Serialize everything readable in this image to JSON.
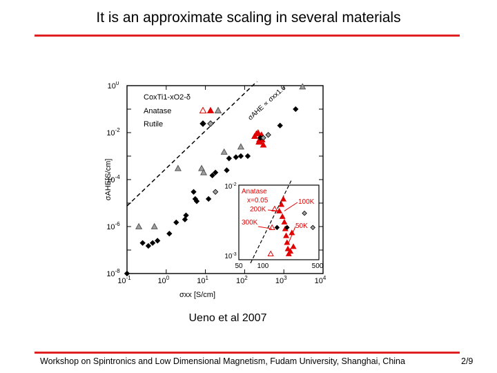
{
  "slide": {
    "title": "It is an approximate scaling in several materials",
    "caption": "Ueno et al 2007",
    "footer": "Workshop on Spintronics and Low Dimensional Magnetism, Fudam University, Shanghai, China",
    "page": "2/9"
  },
  "colors": {
    "rule": "#e02020",
    "anatase": "#e00000",
    "grey_marker": "#a0a0a0",
    "black_marker": "#000000"
  },
  "chart_data": [
    {
      "type": "scatter",
      "scale": "log-log",
      "xlabel": "σxx [S/cm]",
      "ylabel": "σAHE[S/cm]",
      "xlim": [
        0.1,
        10000
      ],
      "ylim": [
        1e-08,
        1
      ],
      "x_ticks": [
        "10-1",
        "100",
        "101",
        "102",
        "103",
        "104"
      ],
      "y_ticks": [
        "10-8",
        "10-6",
        "10-4",
        "10-2",
        "100"
      ],
      "legend": {
        "title": "CoxTi1-xO2-δ",
        "entries": [
          "Anatase",
          "Rutile"
        ]
      },
      "annotation": "σAHE ∝ σxx1.6",
      "series": [
        {
          "name": "Anatase (black)",
          "marker": "open-triangle",
          "color": "#a0a0a0",
          "points": [
            [
              0.2,
              1e-06
            ],
            [
              0.5,
              1e-06
            ],
            [
              2,
              0.0003
            ],
            [
              8,
              0.0003
            ],
            [
              9,
              0.0002
            ],
            [
              30,
              0.0015
            ],
            [
              80,
              0.0025
            ],
            [
              3000,
              0.9
            ]
          ]
        },
        {
          "name": "Anatase (red)",
          "marker": "mixed-triangle",
          "color": "#e00000",
          "points": [
            [
              180,
              0.007
            ],
            [
              200,
              0.009
            ],
            [
              220,
              0.01
            ],
            [
              230,
              0.004
            ],
            [
              240,
              0.005
            ],
            [
              250,
              0.004
            ],
            [
              260,
              0.006
            ],
            [
              270,
              0.008
            ],
            [
              280,
              0.005
            ],
            [
              300,
              0.003
            ]
          ]
        },
        {
          "name": "Rutile (black)",
          "marker": "diamond",
          "color": "#000000",
          "points": [
            [
              0.1,
              1e-08
            ],
            [
              0.25,
              2e-07
            ],
            [
              0.35,
              1.5e-07
            ],
            [
              0.45,
              2e-07
            ],
            [
              0.6,
              2.5e-07
            ],
            [
              1.2,
              5e-07
            ],
            [
              1.8,
              1.5e-06
            ],
            [
              3,
              2e-06
            ],
            [
              3.2,
              3e-06
            ],
            [
              5,
              3e-05
            ],
            [
              5.5,
              1.5e-05
            ],
            [
              6,
              1.2e-05
            ],
            [
              12,
              1.5e-05
            ],
            [
              15,
              0.00015
            ],
            [
              18,
              0.0002
            ],
            [
              35,
              0.00025
            ],
            [
              40,
              0.0008
            ],
            [
              60,
              0.0009
            ],
            [
              80,
              0.001
            ],
            [
              120,
              0.001
            ],
            [
              250,
              0.006
            ],
            [
              800,
              0.02
            ],
            [
              2000,
              0.1
            ]
          ]
        },
        {
          "name": "Rutile (grey)",
          "marker": "grey-diamond",
          "color": "#a0a0a0",
          "points": [
            [
              18,
              3e-05
            ],
            [
              300,
              0.006
            ],
            [
              400,
              0.008
            ]
          ]
        }
      ]
    },
    {
      "type": "scatter",
      "scale": "log-log",
      "role": "inset",
      "xlim": [
        50,
        500
      ],
      "ylim": [
        0.001,
        0.01
      ],
      "x_ticks": [
        "50",
        "100",
        "500"
      ],
      "y_ticks": [
        "10-2",
        "10-3"
      ],
      "labels": [
        "Anatase",
        "x=0.05",
        "200K",
        "300K",
        "100K",
        "50K"
      ],
      "series": [
        {
          "name": "Anatase red",
          "marker": "triangle",
          "color": "#e00000",
          "points": [
            [
              160,
              0.0045
            ],
            [
              170,
              0.0055
            ],
            [
              180,
              0.0065
            ],
            [
              175,
              0.0038
            ],
            [
              185,
              0.0032
            ],
            [
              190,
              0.0026
            ],
            [
              195,
              0.0021
            ],
            [
              200,
              0.0017
            ],
            [
              205,
              0.0014
            ],
            [
              210,
              0.0012
            ],
            [
              220,
              0.0013
            ],
            [
              230,
              0.0023
            ],
            [
              240,
              0.0015
            ]
          ]
        },
        {
          "name": "open",
          "marker": "open-triangle",
          "color": "#e00000",
          "points": [
            [
              140,
              0.0048
            ],
            [
              130,
              0.0027
            ],
            [
              125,
              0.0012
            ]
          ]
        },
        {
          "name": "black",
          "marker": "diamond",
          "color": "#000000",
          "points": [
            [
              150,
              0.0027
            ],
            [
              200,
              0.0027
            ]
          ]
        },
        {
          "name": "grey",
          "marker": "grey-diamond",
          "color": "#a0a0a0",
          "points": [
            [
              330,
              0.0042
            ],
            [
              420,
              0.0027
            ]
          ]
        }
      ]
    }
  ]
}
